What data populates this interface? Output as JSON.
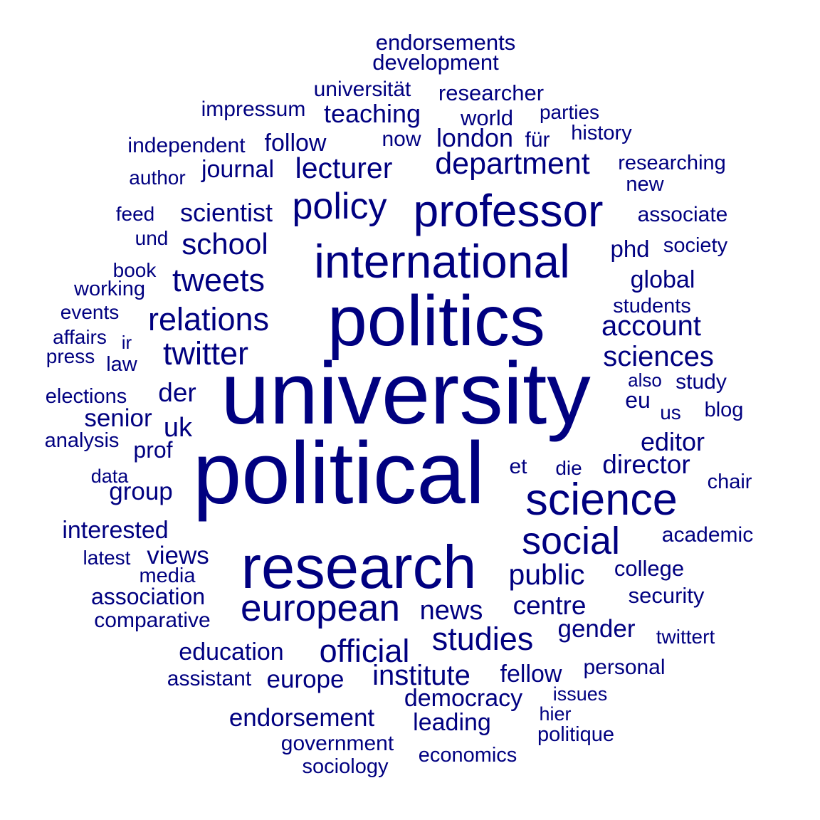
{
  "text_color": "#000080",
  "background": "#ffffff",
  "words": [
    "endorsements",
    "development",
    "universität",
    "researcher",
    "impressum",
    "teaching",
    "world",
    "parties",
    "now",
    "london",
    "für",
    "history",
    "independent",
    "follow",
    "researching",
    "department",
    "author",
    "journal",
    "lecturer",
    "new",
    "feed",
    "scientist",
    "policy",
    "professor",
    "associate",
    "und",
    "school",
    "phd",
    "society",
    "international",
    "book",
    "working",
    "tweets",
    "global",
    "events",
    "students",
    "affairs",
    "ir",
    "relations",
    "politics",
    "account",
    "press",
    "law",
    "twitter",
    "sciences",
    "also",
    "study",
    "elections",
    "der",
    "university",
    "eu",
    "us",
    "blog",
    "senior",
    "uk",
    "analysis",
    "editor",
    "prof",
    "data",
    "et",
    "die",
    "director",
    "chair",
    "group",
    "political",
    "science",
    "interested",
    "social",
    "academic",
    "latest",
    "views",
    "media",
    "research",
    "public",
    "college",
    "association",
    "security",
    "comparative",
    "european",
    "news",
    "centre",
    "gender",
    "twittert",
    "education",
    "official",
    "studies",
    "assistant",
    "europe",
    "institute",
    "fellow",
    "personal",
    "democracy",
    "issues",
    "hier",
    "endorsement",
    "leading",
    "politique",
    "government",
    "economics",
    "sociology"
  ]
}
